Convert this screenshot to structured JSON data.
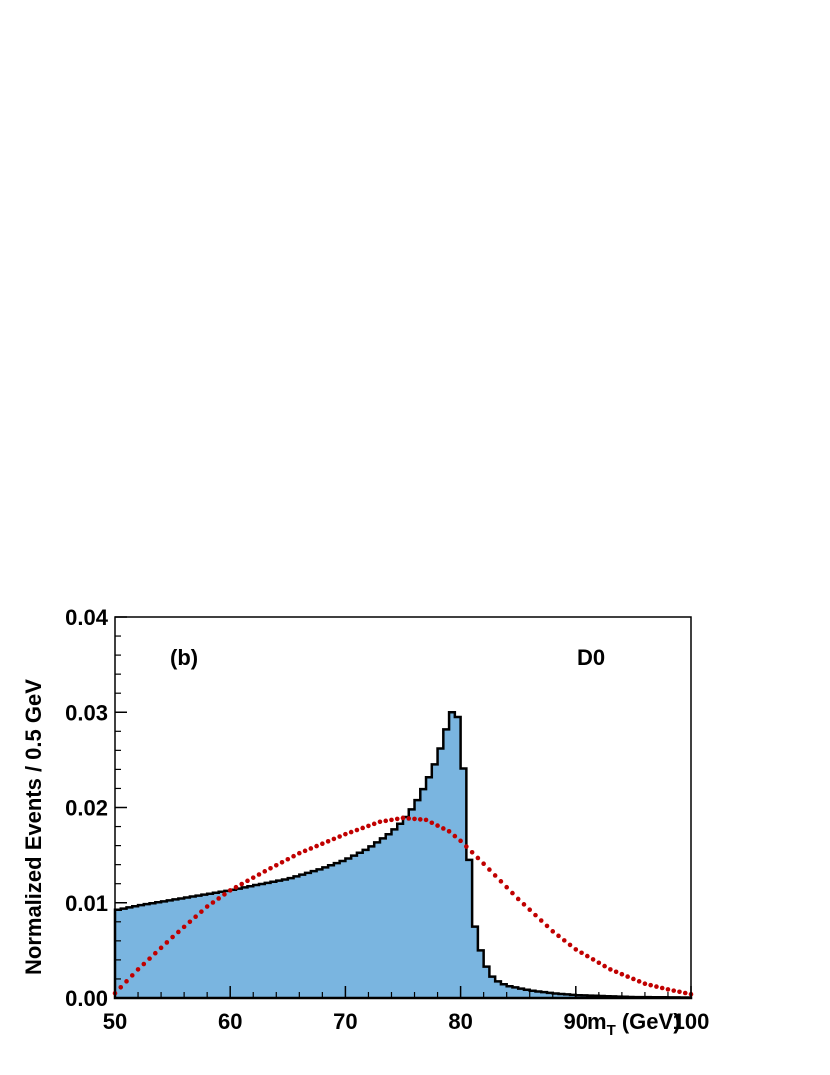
{
  "chart_data": {
    "type": "histogram",
    "xlabel": "m",
    "xlabel_subscript": "T",
    "xlabel_units": " (GeV)",
    "ylabel": "Normalized Events / 0.5 GeV",
    "xlim": [
      50,
      100
    ],
    "ylim": [
      0,
      0.04
    ],
    "x_ticks": [
      "50",
      "60",
      "70",
      "80",
      "90",
      "100"
    ],
    "y_ticks": [
      "0.00",
      "0.01",
      "0.02",
      "0.03",
      "0.04"
    ],
    "annotations": [
      "(b)",
      "D0"
    ],
    "bin_width": 0.5,
    "colors": {
      "fill": "#7ab5e0",
      "outline": "#000000",
      "dots": "#c00000"
    },
    "series": [
      {
        "style": "filled-histogram",
        "points": [
          [
            50,
            0.0092
          ],
          [
            52,
            0.0097
          ],
          [
            55,
            0.0103
          ],
          [
            58,
            0.0109
          ],
          [
            60,
            0.0113
          ],
          [
            62,
            0.0118
          ],
          [
            65,
            0.0125
          ],
          [
            68,
            0.0136
          ],
          [
            70,
            0.0145
          ],
          [
            72,
            0.0157
          ],
          [
            74,
            0.0174
          ],
          [
            75,
            0.0186
          ],
          [
            76,
            0.0202
          ],
          [
            77,
            0.0225
          ],
          [
            78,
            0.0252
          ],
          [
            79,
            0.0292
          ],
          [
            79.5,
            0.0308
          ],
          [
            80,
            0.0282
          ],
          [
            80.5,
            0.02
          ],
          [
            81,
            0.009
          ],
          [
            81.5,
            0.006
          ],
          [
            82,
            0.004
          ],
          [
            82.5,
            0.0026
          ],
          [
            83,
            0.0019
          ],
          [
            84,
            0.0013
          ],
          [
            86,
            0.0008
          ],
          [
            88,
            0.0005
          ],
          [
            90,
            0.0003
          ],
          [
            95,
            0.0001
          ],
          [
            100,
            5e-05
          ]
        ]
      },
      {
        "style": "dotted-curve",
        "points": [
          [
            50,
            0.0005
          ],
          [
            52,
            0.003
          ],
          [
            55,
            0.0064
          ],
          [
            58,
            0.0096
          ],
          [
            60,
            0.0113
          ],
          [
            63,
            0.0133
          ],
          [
            66,
            0.0152
          ],
          [
            70,
            0.0172
          ],
          [
            73,
            0.0185
          ],
          [
            75,
            0.0189
          ],
          [
            77,
            0.0187
          ],
          [
            79,
            0.0175
          ],
          [
            80,
            0.0165
          ],
          [
            82,
            0.0141
          ],
          [
            85,
            0.0104
          ],
          [
            88,
            0.007
          ],
          [
            90,
            0.0051
          ],
          [
            93,
            0.003
          ],
          [
            96,
            0.0015
          ],
          [
            98,
            0.0009
          ],
          [
            100,
            0.0004
          ]
        ]
      }
    ]
  }
}
